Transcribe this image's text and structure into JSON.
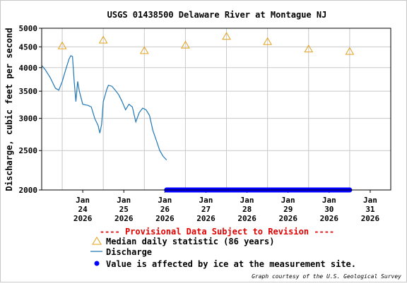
{
  "chart_data": {
    "type": "line",
    "title": "USGS 01438500 Delaware River at Montague NJ",
    "ylabel": "Discharge, cubic feet per second",
    "xlabel": "",
    "ylim": [
      2000,
      5000
    ],
    "y_scale": "log",
    "y_ticks": [
      "5000",
      "4500",
      "4000",
      "3500",
      "3000",
      "2500",
      "2000"
    ],
    "x_range": [
      "2026-01-23T12:00",
      "2026-02-01T00:00"
    ],
    "x_ticks": [
      {
        "day": "Jan",
        "num": "24",
        "year": "2026"
      },
      {
        "day": "Jan",
        "num": "25",
        "year": "2026"
      },
      {
        "day": "Jan",
        "num": "26",
        "year": "2026"
      },
      {
        "day": "Jan",
        "num": "27",
        "year": "2026"
      },
      {
        "day": "Jan",
        "num": "28",
        "year": "2026"
      },
      {
        "day": "Jan",
        "num": "29",
        "year": "2026"
      },
      {
        "day": "Jan",
        "num": "30",
        "year": "2026"
      },
      {
        "day": "Jan",
        "num": "31",
        "year": "2026"
      }
    ],
    "grid": true,
    "series": [
      {
        "name": "Discharge",
        "color": "#1f77b4",
        "points": [
          [
            "2026-01-23T12:00",
            4050
          ],
          [
            "2026-01-23T14:00",
            3960
          ],
          [
            "2026-01-23T17:00",
            3780
          ],
          [
            "2026-01-23T20:00",
            3560
          ],
          [
            "2026-01-23T22:00",
            3520
          ],
          [
            "2026-01-24T00:00",
            3700
          ],
          [
            "2026-01-24T02:00",
            3950
          ],
          [
            "2026-01-24T04:00",
            4200
          ],
          [
            "2026-01-24T05:00",
            4280
          ],
          [
            "2026-01-24T06:00",
            4260
          ],
          [
            "2026-01-24T07:00",
            3700
          ],
          [
            "2026-01-24T08:00",
            3300
          ],
          [
            "2026-01-24T09:00",
            3700
          ],
          [
            "2026-01-24T10:00",
            3500
          ],
          [
            "2026-01-24T12:00",
            3250
          ],
          [
            "2026-01-24T15:00",
            3230
          ],
          [
            "2026-01-24T17:00",
            3200
          ],
          [
            "2026-01-24T19:00",
            3000
          ],
          [
            "2026-01-24T21:00",
            2880
          ],
          [
            "2026-01-24T22:00",
            2760
          ],
          [
            "2026-01-24T23:00",
            2900
          ],
          [
            "2026-01-25T00:00",
            3300
          ],
          [
            "2026-01-25T02:00",
            3530
          ],
          [
            "2026-01-25T03:00",
            3620
          ],
          [
            "2026-01-25T05:00",
            3600
          ],
          [
            "2026-01-25T07:00",
            3520
          ],
          [
            "2026-01-25T09:00",
            3430
          ],
          [
            "2026-01-25T11:00",
            3300
          ],
          [
            "2026-01-25T13:00",
            3150
          ],
          [
            "2026-01-25T15:00",
            3250
          ],
          [
            "2026-01-25T17:00",
            3200
          ],
          [
            "2026-01-25T19:00",
            2940
          ],
          [
            "2026-01-25T21:00",
            3100
          ],
          [
            "2026-01-25T23:00",
            3180
          ],
          [
            "2026-01-26T01:00",
            3150
          ],
          [
            "2026-01-26T03:00",
            3050
          ],
          [
            "2026-01-26T05:00",
            2800
          ],
          [
            "2026-01-26T07:00",
            2650
          ],
          [
            "2026-01-26T09:00",
            2500
          ],
          [
            "2026-01-26T11:00",
            2420
          ],
          [
            "2026-01-26T13:00",
            2370
          ]
        ]
      },
      {
        "name": "Median daily statistic (86 years)",
        "color": "#e3a019",
        "marker": "triangle-open",
        "points": [
          [
            "2026-01-24T00:00",
            4530
          ],
          [
            "2026-01-25T00:00",
            4680
          ],
          [
            "2026-01-26T00:00",
            4410
          ],
          [
            "2026-01-27T00:00",
            4550
          ],
          [
            "2026-01-28T00:00",
            4780
          ],
          [
            "2026-01-29T00:00",
            4640
          ],
          [
            "2026-01-30T00:00",
            4450
          ],
          [
            "2026-01-31T00:00",
            4390
          ]
        ]
      },
      {
        "name": "Value is affected by ice at the measurement site.",
        "color": "#0000ff",
        "marker": "dot",
        "y_value": 2000,
        "from": "2026-01-26T13:00",
        "to": "2026-01-31T00:00"
      }
    ],
    "provisional_note": "---- Provisional Data Subject to Revision ----",
    "credit": "Graph courtesy of the U.S. Geological Survey"
  }
}
